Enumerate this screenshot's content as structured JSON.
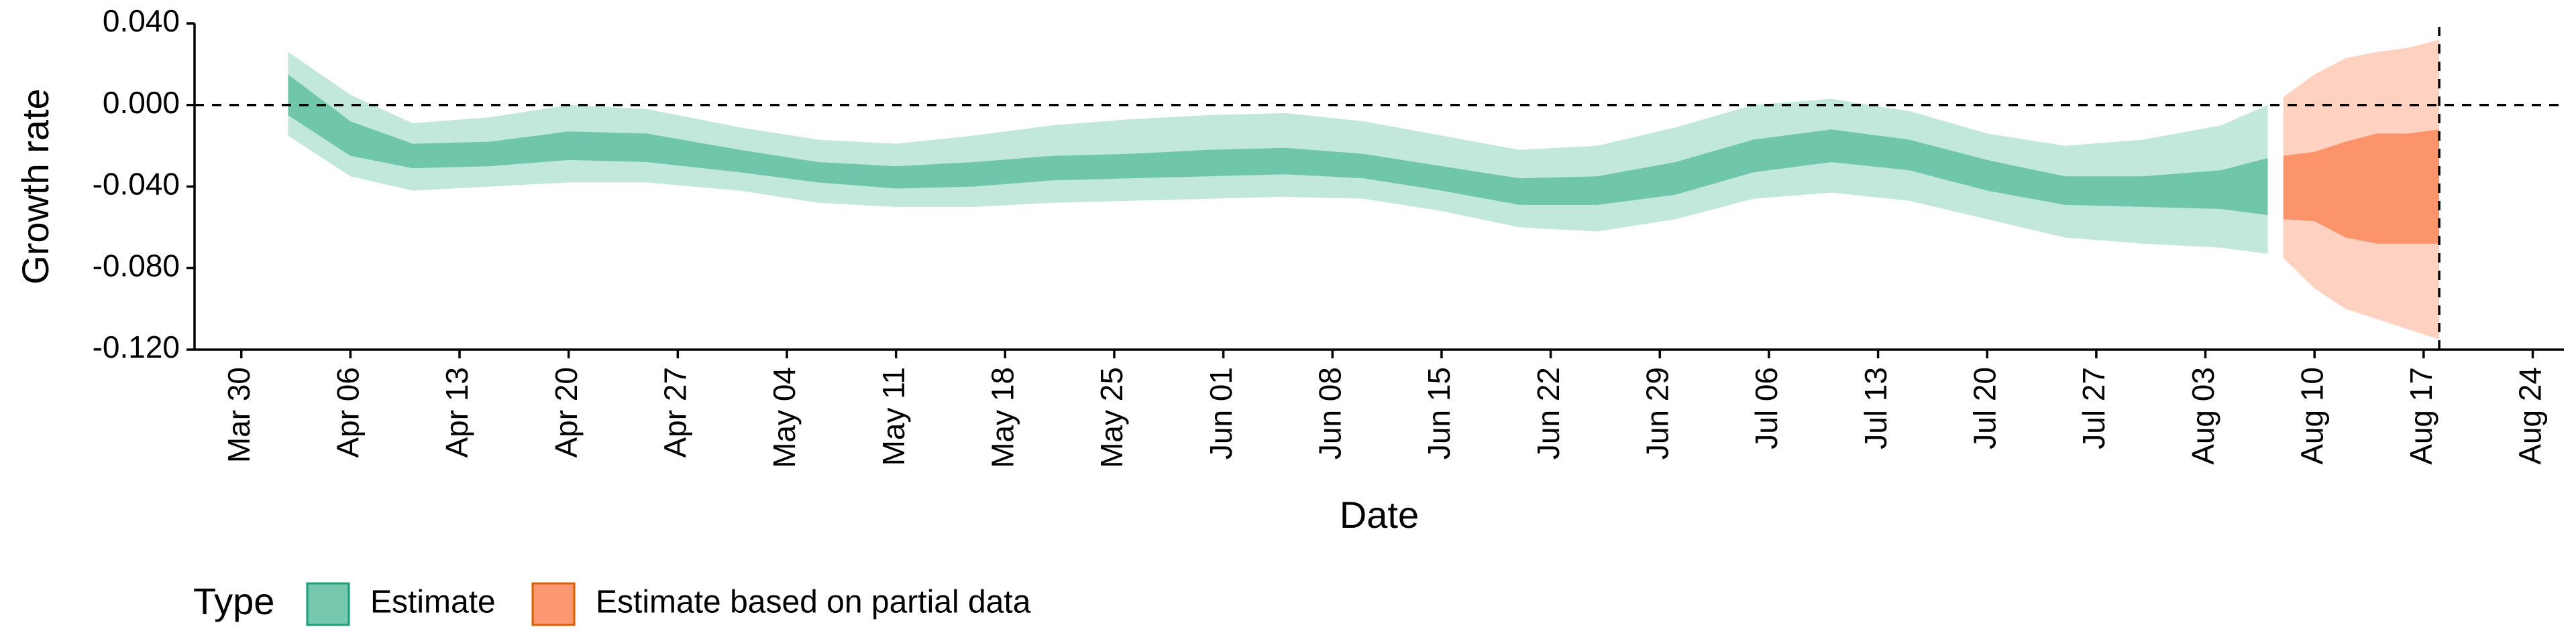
{
  "chart_data": {
    "type": "area",
    "xlabel": "Date",
    "ylabel": "Growth rate",
    "ylim": [
      -0.12,
      0.04
    ],
    "yticks": [
      0.04,
      0.0,
      -0.04,
      -0.08,
      -0.12
    ],
    "ytick_labels": [
      "0.040",
      "0.000",
      "-0.040",
      "-0.080",
      "-0.120"
    ],
    "xlim": [
      "2020-03-27",
      "2020-08-26"
    ],
    "xticks": [
      "2020-03-30",
      "2020-04-06",
      "2020-04-13",
      "2020-04-20",
      "2020-04-27",
      "2020-05-04",
      "2020-05-11",
      "2020-05-18",
      "2020-05-25",
      "2020-06-01",
      "2020-06-08",
      "2020-06-15",
      "2020-06-22",
      "2020-06-29",
      "2020-07-06",
      "2020-07-13",
      "2020-07-20",
      "2020-07-27",
      "2020-08-03",
      "2020-08-10",
      "2020-08-17",
      "2020-08-24"
    ],
    "xtick_labels": [
      "Mar 30",
      "Apr 06",
      "Apr 13",
      "Apr 20",
      "Apr 27",
      "May 04",
      "May 11",
      "May 18",
      "May 25",
      "Jun 01",
      "Jun 08",
      "Jun 15",
      "Jun 22",
      "Jun 29",
      "Jul 06",
      "Jul 13",
      "Jul 20",
      "Jul 27",
      "Aug 03",
      "Aug 10",
      "Aug 17",
      "Aug 24"
    ],
    "reference_hline": 0.0,
    "reference_vline": "2020-08-18",
    "grid": false,
    "legend": {
      "title": "Type",
      "position": "bottom-left"
    },
    "series": [
      {
        "name": "Estimate",
        "color": "#66c2a5",
        "x": [
          "2020-04-02",
          "2020-04-06",
          "2020-04-10",
          "2020-04-15",
          "2020-04-20",
          "2020-04-25",
          "2020-05-01",
          "2020-05-06",
          "2020-05-11",
          "2020-05-16",
          "2020-05-21",
          "2020-05-26",
          "2020-05-31",
          "2020-06-05",
          "2020-06-10",
          "2020-06-15",
          "2020-06-20",
          "2020-06-25",
          "2020-06-30",
          "2020-07-05",
          "2020-07-10",
          "2020-07-15",
          "2020-07-20",
          "2020-07-25",
          "2020-07-30",
          "2020-08-04",
          "2020-08-07"
        ],
        "lower_90": [
          -0.015,
          -0.035,
          -0.042,
          -0.04,
          -0.038,
          -0.038,
          -0.042,
          -0.048,
          -0.05,
          -0.05,
          -0.048,
          -0.047,
          -0.046,
          -0.045,
          -0.046,
          -0.052,
          -0.06,
          -0.062,
          -0.056,
          -0.046,
          -0.043,
          -0.047,
          -0.056,
          -0.065,
          -0.068,
          -0.07,
          -0.073
        ],
        "lower_50": [
          -0.005,
          -0.025,
          -0.031,
          -0.03,
          -0.027,
          -0.028,
          -0.033,
          -0.038,
          -0.041,
          -0.04,
          -0.037,
          -0.036,
          -0.035,
          -0.034,
          -0.036,
          -0.042,
          -0.049,
          -0.049,
          -0.044,
          -0.033,
          -0.028,
          -0.032,
          -0.042,
          -0.049,
          -0.05,
          -0.051,
          -0.054
        ],
        "median": [
          0.005,
          -0.017,
          -0.025,
          -0.024,
          -0.02,
          -0.021,
          -0.028,
          -0.034,
          -0.036,
          -0.034,
          -0.031,
          -0.03,
          -0.028,
          -0.028,
          -0.031,
          -0.036,
          -0.043,
          -0.043,
          -0.036,
          -0.025,
          -0.02,
          -0.025,
          -0.035,
          -0.043,
          -0.044,
          -0.045,
          -0.046
        ],
        "upper_50": [
          0.015,
          -0.008,
          -0.019,
          -0.018,
          -0.013,
          -0.014,
          -0.022,
          -0.028,
          -0.03,
          -0.028,
          -0.025,
          -0.024,
          -0.022,
          -0.021,
          -0.024,
          -0.03,
          -0.036,
          -0.035,
          -0.028,
          -0.017,
          -0.012,
          -0.017,
          -0.027,
          -0.035,
          -0.035,
          -0.032,
          -0.026
        ],
        "upper_90": [
          0.026,
          0.005,
          -0.009,
          -0.006,
          0.0,
          -0.002,
          -0.011,
          -0.017,
          -0.019,
          -0.015,
          -0.01,
          -0.007,
          -0.005,
          -0.004,
          -0.008,
          -0.015,
          -0.022,
          -0.02,
          -0.011,
          0.0,
          0.003,
          -0.003,
          -0.014,
          -0.02,
          -0.017,
          -0.01,
          0.0
        ]
      },
      {
        "name": "Estimate based on partial data",
        "color": "#fc8d62",
        "x": [
          "2020-08-08",
          "2020-08-10",
          "2020-08-12",
          "2020-08-14",
          "2020-08-16",
          "2020-08-18"
        ],
        "lower_90": [
          -0.075,
          -0.09,
          -0.1,
          -0.105,
          -0.11,
          -0.115
        ],
        "lower_50": [
          -0.056,
          -0.057,
          -0.065,
          -0.068,
          -0.068,
          -0.068
        ],
        "median": [
          -0.045,
          -0.044,
          -0.046,
          -0.044,
          -0.045,
          -0.042
        ],
        "upper_50": [
          -0.025,
          -0.023,
          -0.018,
          -0.014,
          -0.014,
          -0.012
        ],
        "upper_90": [
          0.004,
          0.015,
          0.023,
          0.026,
          0.028,
          0.032
        ]
      }
    ]
  }
}
